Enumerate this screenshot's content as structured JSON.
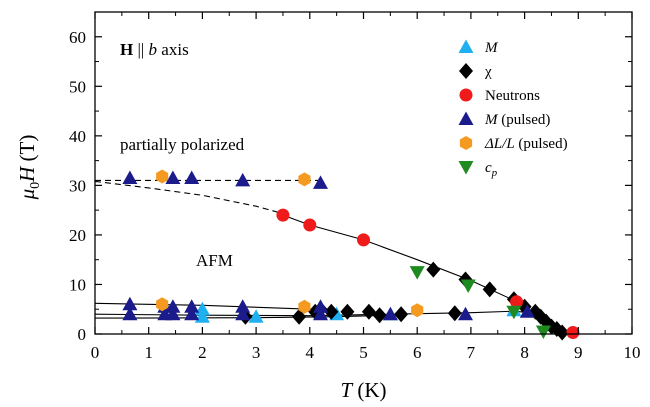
{
  "chart_data": {
    "type": "scatter",
    "xlabel": {
      "var": "T",
      "unit": " (K)"
    },
    "ylabel": {
      "var": "μ",
      "sub": "0",
      "var2": "H",
      "unit": " (T)"
    },
    "xlim": [
      0,
      10
    ],
    "ylim": [
      0,
      65
    ],
    "xticks": [
      "0",
      "1",
      "2",
      "3",
      "4",
      "5",
      "6",
      "7",
      "8",
      "9",
      "10"
    ],
    "yticks": [
      "0",
      "10",
      "20",
      "30",
      "40",
      "50",
      "60"
    ],
    "grid": false,
    "legend_position": "top-right",
    "annotations": {
      "field_bold": "H",
      "field_parallel": " || ",
      "field_axis_var": "b",
      "field_axis_word": " axis",
      "region_upper": "partially polarized",
      "region_lower": "AFM"
    },
    "series": [
      {
        "key": "M",
        "name": "M",
        "name_italic": true,
        "marker": "triangle-up",
        "color": "#1fb0f0",
        "points": [
          [
            2.0,
            5.0
          ],
          [
            2.0,
            3.5
          ],
          [
            3.0,
            3.5
          ],
          [
            4.5,
            4.0
          ],
          [
            5.5,
            4.0
          ],
          [
            7.8,
            4.8
          ]
        ]
      },
      {
        "key": "chi",
        "name": "χ",
        "name_italic": false,
        "marker": "diamond",
        "color": "#000000",
        "points": [
          [
            2.8,
            3.5
          ],
          [
            3.8,
            3.5
          ],
          [
            4.1,
            4.5
          ],
          [
            4.2,
            5.0
          ],
          [
            4.4,
            4.5
          ],
          [
            4.7,
            4.5
          ],
          [
            5.1,
            4.5
          ],
          [
            5.3,
            3.8
          ],
          [
            5.7,
            4.0
          ],
          [
            6.7,
            4.2
          ],
          [
            6.3,
            13.0
          ],
          [
            6.9,
            11.0
          ],
          [
            7.35,
            9.0
          ],
          [
            7.8,
            7.0
          ],
          [
            8.0,
            5.5
          ],
          [
            8.2,
            4.5
          ],
          [
            8.3,
            3.5
          ],
          [
            8.4,
            2.5
          ],
          [
            8.5,
            1.5
          ],
          [
            8.6,
            1.0
          ],
          [
            8.7,
            0.3
          ]
        ]
      },
      {
        "key": "neutrons",
        "name": "Neutrons",
        "name_italic": false,
        "marker": "circle",
        "color": "#ef1b1b",
        "points": [
          [
            3.5,
            24.0
          ],
          [
            4.0,
            22.0
          ],
          [
            5.0,
            19.0
          ],
          [
            7.85,
            6.5
          ],
          [
            8.9,
            0.3
          ]
        ]
      },
      {
        "key": "m_pulsed",
        "name": "M",
        "name_suffix": " (pulsed)",
        "name_italic": true,
        "marker": "triangle-up",
        "color": "#1b1b8c",
        "points": [
          [
            0.65,
            31.5
          ],
          [
            1.45,
            31.5
          ],
          [
            1.8,
            31.5
          ],
          [
            2.75,
            31.0
          ],
          [
            4.2,
            30.5
          ],
          [
            0.65,
            6.0
          ],
          [
            0.65,
            4.0
          ],
          [
            1.3,
            5.5
          ],
          [
            1.3,
            4.0
          ],
          [
            1.45,
            5.5
          ],
          [
            1.45,
            4.0
          ],
          [
            1.8,
            5.5
          ],
          [
            1.8,
            4.0
          ],
          [
            2.75,
            5.5
          ],
          [
            2.75,
            4.0
          ],
          [
            4.2,
            5.5
          ],
          [
            4.2,
            4.0
          ],
          [
            5.5,
            4.0
          ],
          [
            6.9,
            4.0
          ],
          [
            8.05,
            4.5
          ]
        ]
      },
      {
        "key": "dl_pulsed",
        "name": "ΔL/L",
        "name_suffix": " (pulsed)",
        "name_italic": true,
        "marker": "hexagon",
        "color": "#f59a20",
        "points": [
          [
            1.25,
            31.8
          ],
          [
            3.9,
            31.2
          ],
          [
            1.25,
            6.0
          ],
          [
            3.9,
            5.5
          ],
          [
            6.0,
            4.8
          ]
        ]
      },
      {
        "key": "cp",
        "name": "c",
        "name_sub": "p",
        "name_italic": true,
        "marker": "triangle-down",
        "color": "#1f8a1f",
        "points": [
          [
            6.0,
            12.5
          ],
          [
            6.95,
            9.8
          ],
          [
            7.8,
            4.5
          ],
          [
            8.35,
            0.5
          ]
        ]
      }
    ],
    "lines": [
      {
        "style": "dashed",
        "points": [
          [
            0.0,
            31.0
          ],
          [
            4.2,
            31.0
          ]
        ]
      },
      {
        "style": "dashed",
        "points": [
          [
            0.0,
            30.8
          ],
          [
            1.0,
            29.5
          ],
          [
            2.0,
            28.0
          ],
          [
            3.0,
            25.8
          ],
          [
            3.5,
            24.3
          ]
        ]
      },
      {
        "style": "solid",
        "points": [
          [
            3.5,
            24.0
          ],
          [
            4.0,
            22.0
          ],
          [
            5.0,
            19.0
          ],
          [
            6.0,
            15.0
          ],
          [
            7.0,
            10.8
          ],
          [
            7.8,
            6.8
          ],
          [
            8.3,
            3.5
          ],
          [
            8.7,
            0.4
          ]
        ]
      },
      {
        "style": "solid",
        "points": [
          [
            0.0,
            6.2
          ],
          [
            2.0,
            5.8
          ],
          [
            4.0,
            5.0
          ],
          [
            4.5,
            4.6
          ]
        ]
      },
      {
        "style": "solid",
        "points": [
          [
            0.0,
            4.0
          ],
          [
            2.0,
            3.8
          ],
          [
            4.0,
            3.7
          ],
          [
            5.0,
            3.9
          ],
          [
            6.0,
            4.1
          ],
          [
            7.0,
            4.3
          ],
          [
            7.8,
            4.6
          ],
          [
            8.2,
            4.2
          ],
          [
            8.4,
            2.5
          ],
          [
            8.5,
            0.5
          ]
        ]
      },
      {
        "style": "solid",
        "points": [
          [
            0.0,
            3.2
          ],
          [
            3.0,
            3.3
          ],
          [
            4.5,
            3.5
          ],
          [
            5.5,
            3.8
          ]
        ]
      }
    ]
  }
}
